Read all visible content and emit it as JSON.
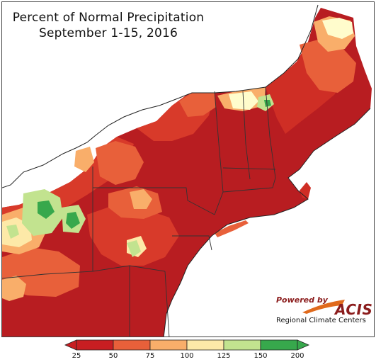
{
  "title": {
    "line1": "Percent of Normal Precipitation",
    "line2": "September 1-15, 2016"
  },
  "logo": {
    "powered_by": "Powered by",
    "name": "ACIS",
    "subtitle": "Regional Climate Centers"
  },
  "legend": {
    "ticks": [
      "25",
      "50",
      "75",
      "100",
      "125",
      "150",
      "200"
    ],
    "colors": [
      "#c81e22",
      "#e8603a",
      "#f9ae6a",
      "#fde9a8",
      "#fffccc",
      "#c2e38f",
      "#37a84c"
    ]
  }
}
